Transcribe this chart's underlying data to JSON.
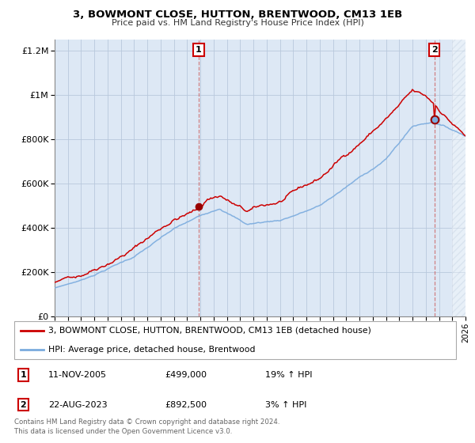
{
  "title": "3, BOWMONT CLOSE, HUTTON, BRENTWOOD, CM13 1EB",
  "subtitle": "Price paid vs. HM Land Registry's House Price Index (HPI)",
  "bg_color": "#dde8f5",
  "plot_bg": "#dde8f5",
  "line1_color": "#cc0000",
  "line2_color": "#7aabde",
  "marker_color1": "#990000",
  "marker_color2": "#7aabde",
  "label1": "3, BOWMONT CLOSE, HUTTON, BRENTWOOD, CM13 1EB (detached house)",
  "label2": "HPI: Average price, detached house, Brentwood",
  "annotation1_label": "1",
  "annotation1_date": "2005-11-11",
  "annotation1_value": 499000,
  "annotation1_text": "11-NOV-2005",
  "annotation1_price": "£499,000",
  "annotation1_hpi": "19% ↑ HPI",
  "annotation2_label": "2",
  "annotation2_date": "2023-08-22",
  "annotation2_value": 892500,
  "annotation2_text": "22-AUG-2023",
  "annotation2_price": "£892,500",
  "annotation2_hpi": "3% ↑ HPI",
  "footer": "Contains HM Land Registry data © Crown copyright and database right 2024.\nThis data is licensed under the Open Government Licence v3.0.",
  "ylim": [
    0,
    1250000
  ],
  "yticks": [
    0,
    200000,
    400000,
    600000,
    800000,
    1000000,
    1200000
  ],
  "ytick_labels": [
    "£0",
    "£200K",
    "£400K",
    "£600K",
    "£800K",
    "£1M",
    "£1.2M"
  ],
  "xstart": 1995,
  "xend": 2026,
  "grid_color": "#b8c8dc",
  "t1": 2005.868,
  "t2": 2023.641
}
